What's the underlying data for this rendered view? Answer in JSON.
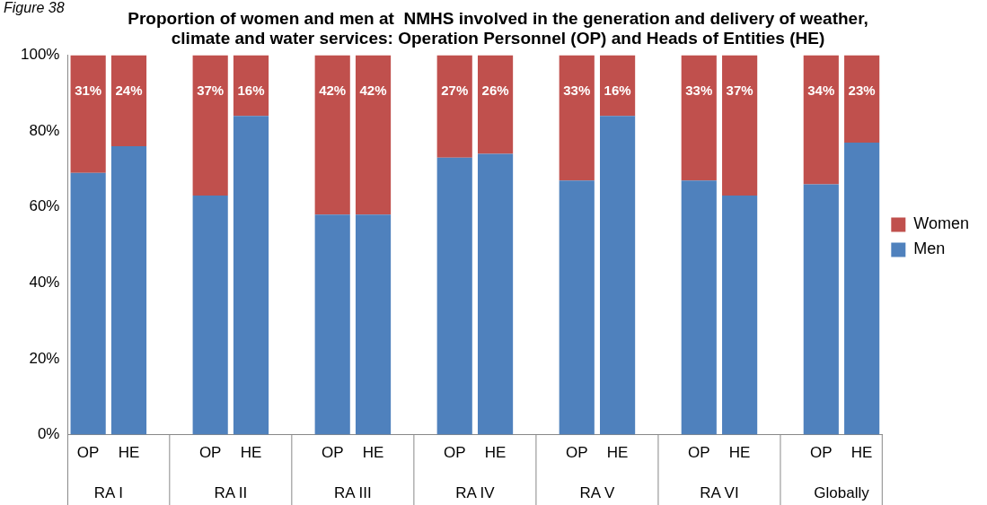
{
  "chart_data": {
    "type": "bar",
    "stacked": true,
    "title": "Proportion of women and men at  NMHS involved in the generation and delivery of weather, climate and water services: Operation Personnel (OP) and Heads of Entities (HE)",
    "categories": [
      "OP",
      "HE",
      null,
      "OP",
      "HE",
      null,
      "OP",
      "HE",
      null,
      "OP",
      "HE",
      null,
      "OP",
      "HE",
      null,
      "OP",
      "HE",
      null,
      "OP",
      "HE"
    ],
    "series": [
      {
        "name": "Men",
        "color": "#4f81bd",
        "values": [
          69,
          76,
          null,
          63,
          84,
          null,
          58,
          58,
          null,
          73,
          74,
          null,
          67,
          84,
          null,
          67,
          63,
          null,
          66,
          77
        ]
      },
      {
        "name": "Women",
        "color": "#c0504d",
        "values": [
          31,
          24,
          null,
          37,
          16,
          null,
          42,
          42,
          null,
          27,
          26,
          null,
          33,
          16,
          null,
          33,
          37,
          null,
          34,
          23
        ],
        "value_labels": [
          "31%",
          "24%",
          null,
          "37%",
          "16%",
          null,
          "42%",
          "42%",
          null,
          "27%",
          "26%",
          null,
          "33%",
          "16%",
          null,
          "33%",
          "37%",
          null,
          "34%",
          "23%"
        ]
      }
    ],
    "ylim": [
      0,
      100
    ],
    "yticks": [
      {
        "value": 0,
        "label": "0%"
      },
      {
        "value": 20,
        "label": "20%"
      },
      {
        "value": 40,
        "label": "40%"
      },
      {
        "value": 60,
        "label": "60%"
      },
      {
        "value": 80,
        "label": "80%"
      },
      {
        "value": 100,
        "label": "100%"
      }
    ],
    "grid": false,
    "legend": "right",
    "annotations": [
      "Figure 38",
      "RA I",
      "RA II",
      "RA III",
      "RA IV",
      "RA V",
      "RA VI",
      "Globally"
    ]
  }
}
